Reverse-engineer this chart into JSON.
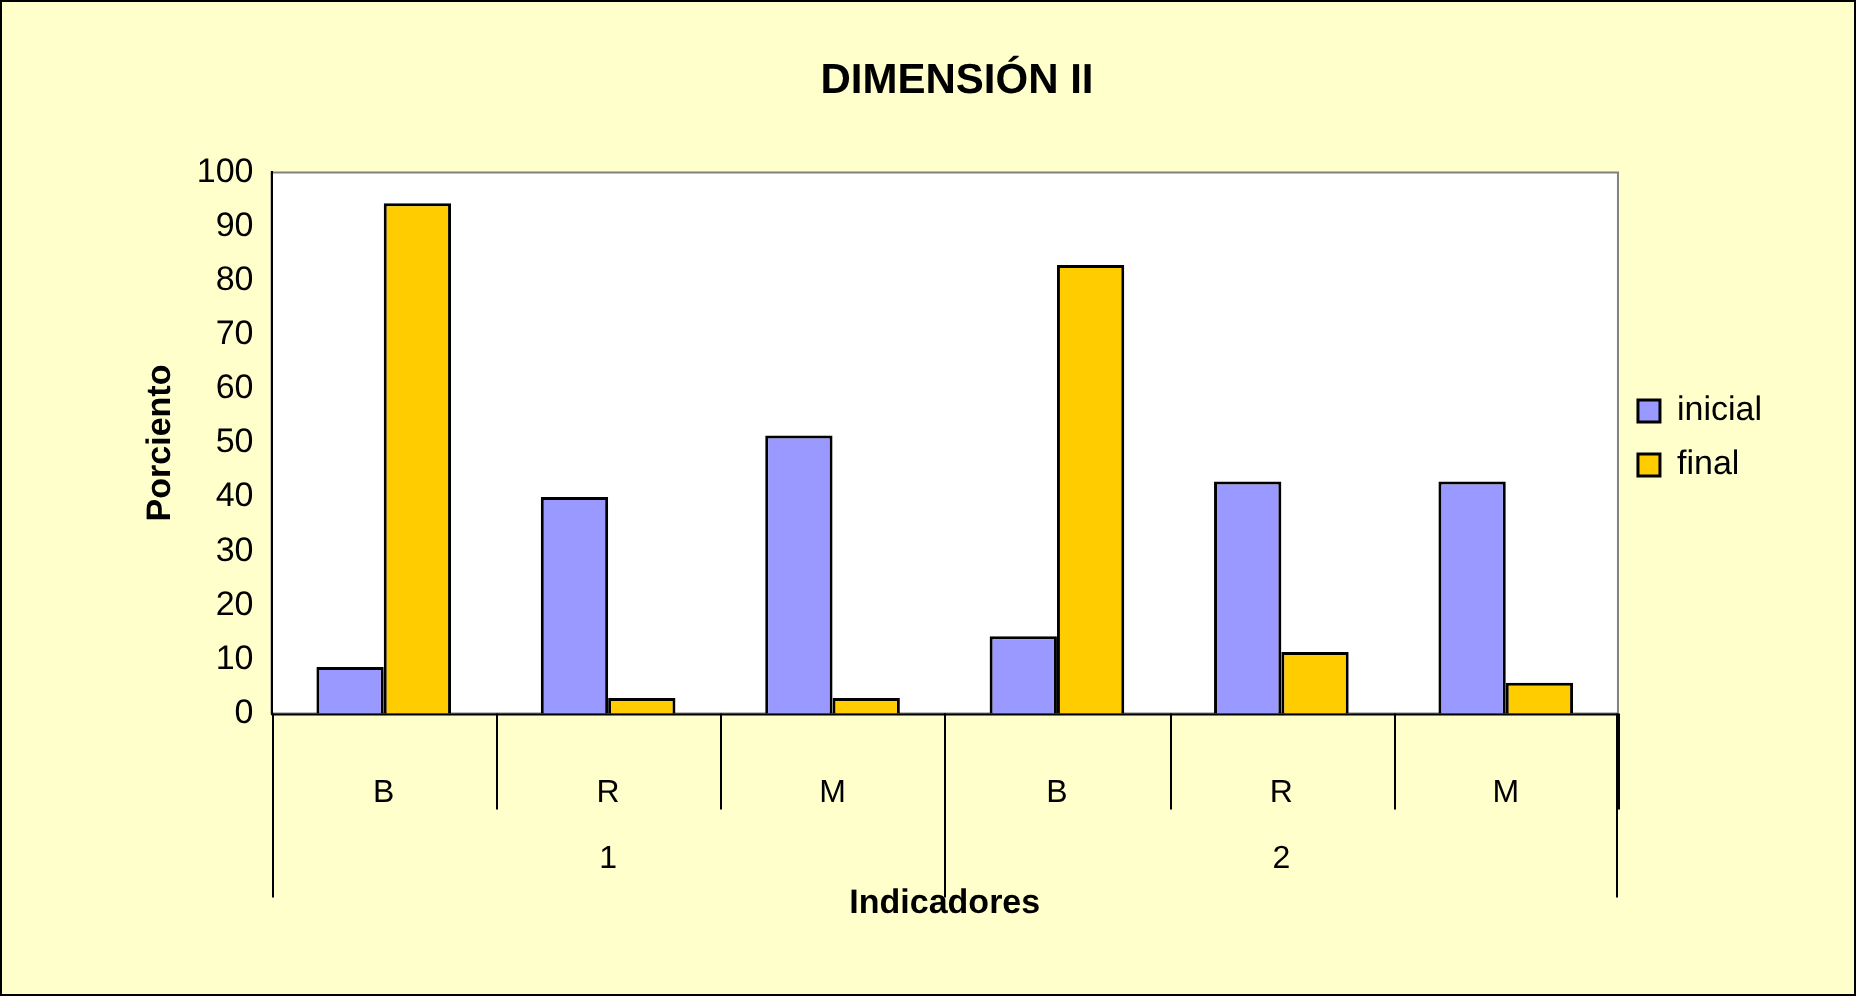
{
  "chart_data": {
    "type": "bar",
    "title": "DIMENSIÓN II",
    "xlabel": "Indicadores",
    "ylabel": "Porciento",
    "categories": [
      "B",
      "R",
      "M",
      "B",
      "R",
      "M"
    ],
    "annotations": [
      "1",
      "2"
    ],
    "series": [
      {
        "name": "inicial",
        "color": "#9999ff",
        "values": [
          8.6,
          40,
          51.4,
          14.3,
          42.9,
          42.9
        ]
      },
      {
        "name": "final",
        "color": "#ffcc00",
        "values": [
          94.3,
          2.9,
          2.9,
          82.9,
          11.4,
          5.7
        ]
      }
    ],
    "ylim": [
      0,
      100
    ],
    "yticks": [
      0,
      10,
      20,
      30,
      40,
      50,
      60,
      70,
      80,
      90,
      100
    ],
    "grid": false,
    "legend": "right"
  }
}
